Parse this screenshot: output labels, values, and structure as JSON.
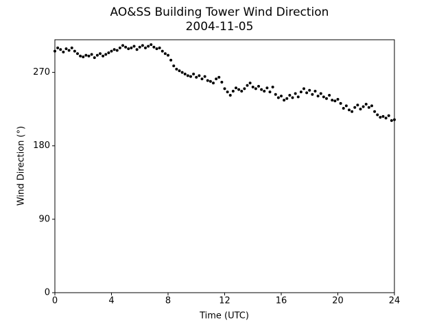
{
  "chart_data": {
    "type": "scatter",
    "title": "AO&SS Building Tower Wind Direction",
    "subtitle": "2004-11-05",
    "x_label": "Time (UTC)",
    "y_label": "Wind Direction (°)",
    "xlim": [
      0,
      24
    ],
    "xticks": [
      0,
      4,
      8,
      12,
      16,
      20,
      24
    ],
    "ylim": [
      0,
      310
    ],
    "yticks": [
      0,
      90,
      180,
      270
    ],
    "color": "#000000",
    "x": [
      0,
      0.2,
      0.4,
      0.6,
      0.8,
      1,
      1.2,
      1.4,
      1.6,
      1.8,
      2,
      2.2,
      2.4,
      2.6,
      2.8,
      3,
      3.2,
      3.4,
      3.6,
      3.8,
      4,
      4.2,
      4.4,
      4.6,
      4.8,
      5,
      5.2,
      5.4,
      5.6,
      5.8,
      6,
      6.2,
      6.4,
      6.6,
      6.8,
      7,
      7.2,
      7.4,
      7.6,
      7.8,
      8,
      8.2,
      8.4,
      8.6,
      8.8,
      9,
      9.2,
      9.4,
      9.6,
      9.8,
      10,
      10.2,
      10.4,
      10.6,
      10.8,
      11,
      11.2,
      11.4,
      11.6,
      11.8,
      12,
      12.2,
      12.4,
      12.6,
      12.8,
      13,
      13.2,
      13.4,
      13.6,
      13.8,
      14,
      14.2,
      14.4,
      14.6,
      14.8,
      15,
      15.2,
      15.4,
      15.6,
      15.8,
      16,
      16.2,
      16.4,
      16.6,
      16.8,
      17,
      17.2,
      17.4,
      17.6,
      17.8,
      18,
      18.2,
      18.4,
      18.6,
      18.8,
      19,
      19.2,
      19.4,
      19.6,
      19.8,
      20,
      20.2,
      20.4,
      20.6,
      20.8,
      21,
      21.2,
      21.4,
      21.6,
      21.8,
      22,
      22.2,
      22.4,
      22.6,
      22.8,
      23,
      23.2,
      23.4,
      23.6,
      23.8,
      24
    ],
    "values": [
      296,
      300,
      298,
      295,
      299,
      297,
      300,
      296,
      293,
      290,
      289,
      291,
      290,
      292,
      288,
      291,
      293,
      290,
      292,
      294,
      296,
      298,
      297,
      300,
      303,
      301,
      299,
      300,
      302,
      298,
      301,
      303,
      300,
      302,
      304,
      301,
      299,
      300,
      296,
      293,
      291,
      285,
      278,
      274,
      272,
      270,
      268,
      266,
      265,
      268,
      264,
      266,
      262,
      265,
      260,
      259,
      257,
      262,
      264,
      258,
      250,
      246,
      242,
      247,
      251,
      249,
      247,
      250,
      254,
      257,
      252,
      250,
      253,
      249,
      247,
      251,
      246,
      252,
      243,
      239,
      241,
      236,
      238,
      242,
      239,
      244,
      240,
      246,
      250,
      245,
      248,
      243,
      247,
      241,
      244,
      240,
      238,
      242,
      236,
      235,
      237,
      232,
      226,
      229,
      224,
      222,
      227,
      230,
      225,
      228,
      231,
      227,
      229,
      222,
      218,
      215,
      216,
      214,
      217,
      211,
      212
    ]
  }
}
